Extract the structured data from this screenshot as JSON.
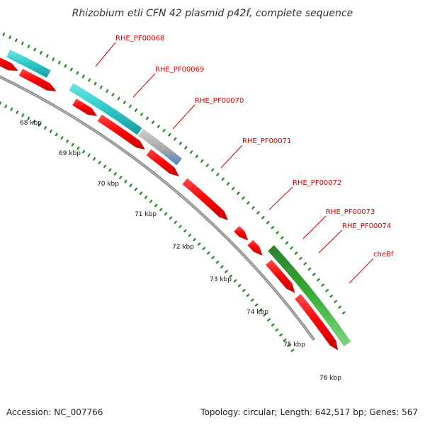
{
  "title": "Rhizobium etli CFN 42 plasmid p42f, complete sequence",
  "footer": {
    "accession": "Accession: NC_007766",
    "topology": "Topology: circular; Length: 642,517 bp; Genes: 567"
  },
  "colors": {
    "backbone": "#8a8a8a",
    "tick": "#1f8a1f",
    "reverse_strand": "#ff0000",
    "forward_cyan": "#2ec8c8",
    "forward_gray": "#aaaaaa",
    "forward_blue": "#4f86c2",
    "forward_green": "#33aa33",
    "label_red": "#cc0000"
  },
  "kbp_labels": [
    "68 kbp",
    "69 kbp",
    "70 kbp",
    "71 kbp",
    "72 kbp",
    "73 kbp",
    "74 kbp",
    "75 kbp",
    "76 kbp"
  ],
  "gene_labels": [
    "RHE_PF00068",
    "RHE_PF00069",
    "RHE_PF00070",
    "RHE_PF00071",
    "RHE_PF00072",
    "RHE_PF00073",
    "RHE_PF00074",
    "cheBf"
  ],
  "features": [
    {
      "strand": "reverse",
      "color": "reverse_strand"
    },
    {
      "strand": "reverse",
      "color": "reverse_strand"
    },
    {
      "strand": "reverse",
      "color": "reverse_strand"
    },
    {
      "strand": "reverse",
      "color": "reverse_strand"
    },
    {
      "strand": "reverse",
      "color": "reverse_strand"
    },
    {
      "strand": "reverse",
      "color": "reverse_strand"
    },
    {
      "strand": "reverse",
      "color": "reverse_strand"
    },
    {
      "strand": "reverse",
      "color": "reverse_strand"
    },
    {
      "strand": "reverse",
      "color": "reverse_strand"
    },
    {
      "strand": "reverse",
      "color": "reverse_strand"
    },
    {
      "strand": "forward",
      "color": "forward_cyan"
    },
    {
      "strand": "forward",
      "color": "forward_cyan"
    },
    {
      "strand": "forward",
      "color": "forward_gray"
    },
    {
      "strand": "forward",
      "color": "forward_green"
    }
  ]
}
